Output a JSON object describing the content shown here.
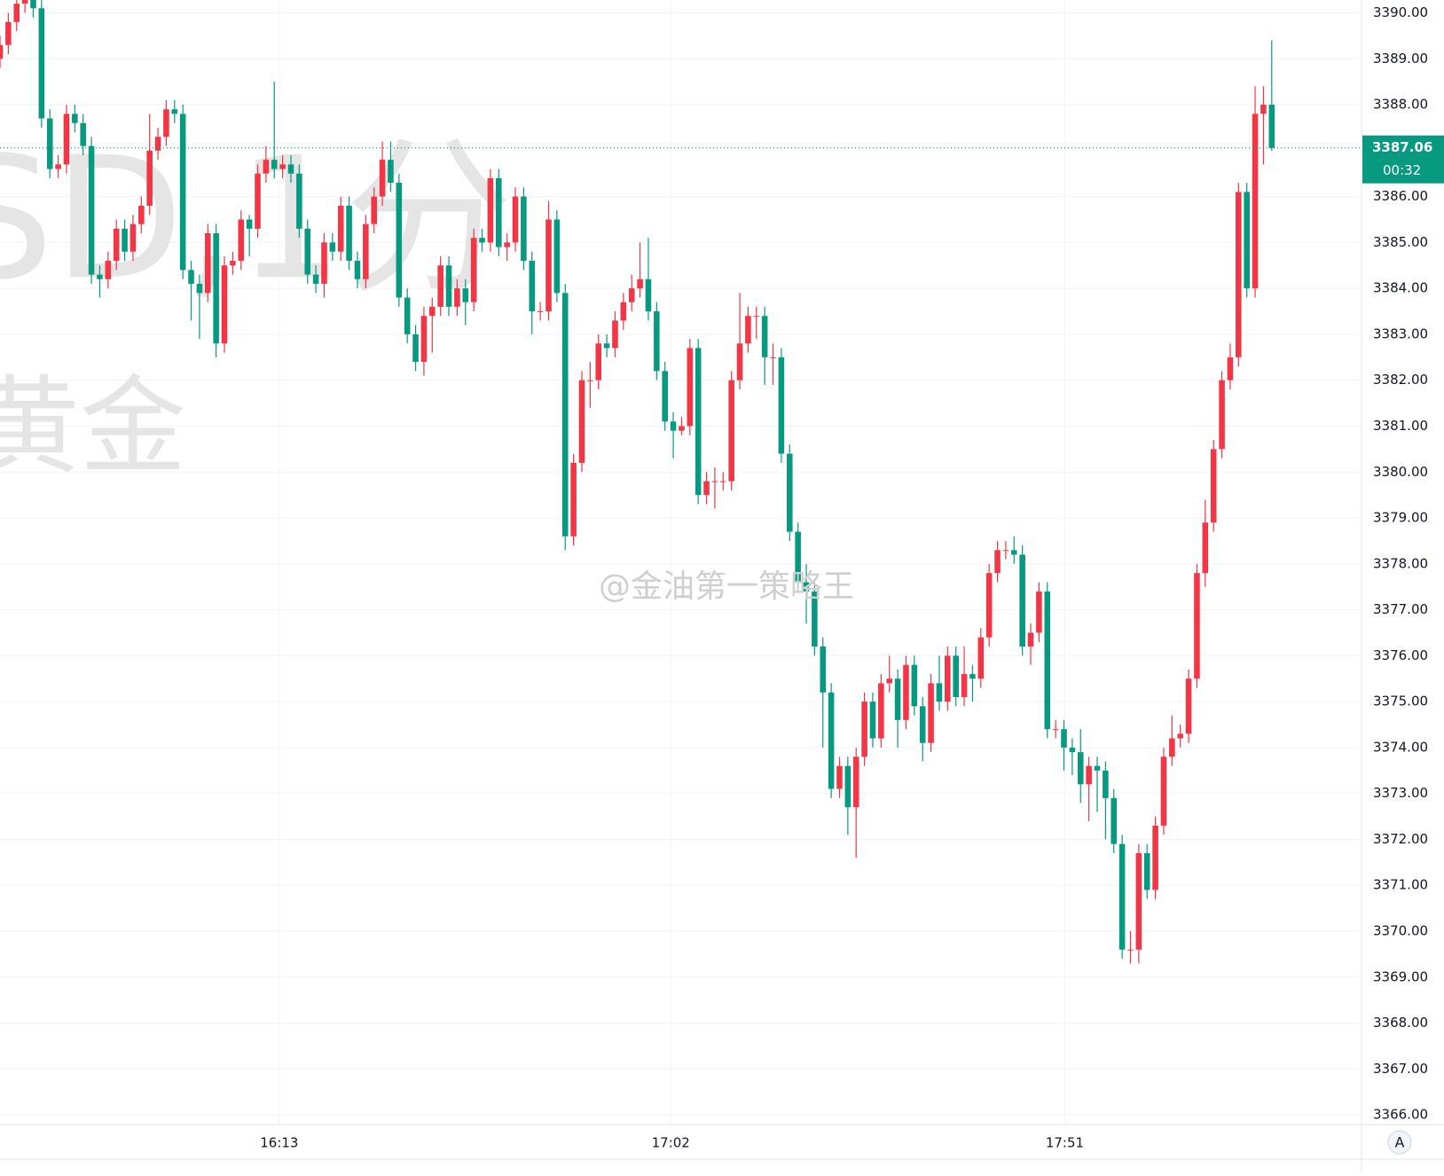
{
  "chart_data": {
    "type": "candlestick",
    "symbol_watermark": "SD,1分",
    "name_watermark": "黄金",
    "credit_watermark": "@金油第一策略王",
    "up_color": "#f23645",
    "down_color": "#089981",
    "grid": true,
    "last_price": 3387.06,
    "countdown": "00:32",
    "scale_button": "A",
    "xlim": [
      0,
      163.8
    ],
    "xticks": [
      {
        "value": 33.6,
        "label": "16:13"
      },
      {
        "value": 80.7,
        "label": "17:02"
      },
      {
        "value": 128.1,
        "label": "17:51"
      }
    ],
    "ylim": [
      3365.79,
      3390.28
    ],
    "yticks": [
      {
        "value": 3366,
        "label": "3366.00"
      },
      {
        "value": 3367,
        "label": "3367.00"
      },
      {
        "value": 3368,
        "label": "3368.00"
      },
      {
        "value": 3369,
        "label": "3369.00"
      },
      {
        "value": 3370,
        "label": "3370.00"
      },
      {
        "value": 3371,
        "label": "3371.00"
      },
      {
        "value": 3372,
        "label": "3372.00"
      },
      {
        "value": 3373,
        "label": "3373.00"
      },
      {
        "value": 3374,
        "label": "3374.00"
      },
      {
        "value": 3375,
        "label": "3375.00"
      },
      {
        "value": 3376,
        "label": "3376.00"
      },
      {
        "value": 3377,
        "label": "3377.00"
      },
      {
        "value": 3378,
        "label": "3378.00"
      },
      {
        "value": 3379,
        "label": "3379.00"
      },
      {
        "value": 3380,
        "label": "3380.00"
      },
      {
        "value": 3381,
        "label": "3381.00"
      },
      {
        "value": 3382,
        "label": "3382.00"
      },
      {
        "value": 3383,
        "label": "3383.00"
      },
      {
        "value": 3384,
        "label": "3384.00"
      },
      {
        "value": 3385,
        "label": "3385.00"
      },
      {
        "value": 3386,
        "label": "3386.00"
      },
      {
        "value": 3388,
        "label": "3388.00"
      },
      {
        "value": 3389,
        "label": "3389.00"
      },
      {
        "value": 3390,
        "label": "3390.00"
      }
    ],
    "open": [
      3389.0,
      3389.3,
      3389.8,
      3390.2,
      3390.3,
      3390.1,
      3387.7,
      3386.6,
      3386.7,
      3387.8,
      3387.6,
      3387.1,
      3384.3,
      3384.2,
      3384.6,
      3385.3,
      3384.8,
      3385.4,
      3385.8,
      3387.0,
      3387.3,
      3387.9,
      3387.8,
      3384.4,
      3384.1,
      3383.9,
      3385.2,
      3382.8,
      3384.5,
      3384.6,
      3385.5,
      3385.3,
      3386.5,
      3386.8,
      3386.6,
      3386.7,
      3386.5,
      3385.3,
      3384.3,
      3384.1,
      3385.0,
      3384.8,
      3385.8,
      3384.6,
      3384.2,
      3385.4,
      3386.0,
      3386.8,
      3386.3,
      3383.8,
      3383.0,
      3382.4,
      3383.4,
      3383.6,
      3384.5,
      3383.6,
      3384.0,
      3383.7,
      3385.1,
      3385.0,
      3386.4,
      3384.9,
      3385.0,
      3386.0,
      3384.6,
      3383.5,
      3383.5,
      3385.5,
      3383.9,
      3378.6,
      3380.2,
      3382.0,
      3382.0,
      3382.8,
      3382.7,
      3383.3,
      3383.7,
      3384.0,
      3384.2,
      3383.5,
      3382.2,
      3381.1,
      3380.9,
      3381.0,
      3382.7,
      3379.5,
      3379.8,
      3379.8,
      3379.8,
      3382.0,
      3382.8,
      3383.4,
      3383.4,
      3382.5,
      3382.5,
      3380.4,
      3378.7,
      3377.6,
      3377.4,
      3376.2,
      3375.2,
      3373.1,
      3373.6,
      3372.7,
      3373.8,
      3375.0,
      3374.2,
      3375.4,
      3375.5,
      3374.6,
      3375.8,
      3374.9,
      3374.1,
      3375.4,
      3375.0,
      3376.0,
      3375.1,
      3375.6,
      3375.5,
      3376.4,
      3377.8,
      3378.3,
      3378.3,
      3378.2,
      3376.2,
      3376.5,
      3377.4,
      3374.4,
      3374.4,
      3374.0,
      3373.9,
      3373.2,
      3373.6,
      3373.5,
      3372.9,
      3371.9,
      3369.6,
      3369.6,
      3371.7,
      3370.9,
      3372.3,
      3373.8,
      3374.2,
      3374.3,
      3375.5,
      3377.8,
      3378.9,
      3380.5,
      3382.0,
      3382.5,
      3386.1,
      3384.0,
      3387.8,
      3388.0
    ],
    "high": [
      3389.5,
      3390.0,
      3390.4,
      3390.5,
      3390.5,
      3390.3,
      3387.9,
      3386.9,
      3388.0,
      3388.0,
      3387.8,
      3387.3,
      3384.5,
      3384.8,
      3385.5,
      3385.5,
      3385.6,
      3386.0,
      3387.8,
      3387.5,
      3388.1,
      3388.1,
      3388.0,
      3384.6,
      3384.3,
      3385.4,
      3385.4,
      3384.7,
      3384.8,
      3385.7,
      3385.6,
      3386.7,
      3387.1,
      3388.5,
      3386.9,
      3386.9,
      3386.7,
      3385.5,
      3384.5,
      3385.2,
      3385.2,
      3386.0,
      3386.0,
      3384.8,
      3385.6,
      3386.2,
      3387.2,
      3387.2,
      3386.5,
      3384.0,
      3383.2,
      3383.6,
      3383.8,
      3384.7,
      3384.7,
      3384.2,
      3384.2,
      3385.3,
      3385.3,
      3386.6,
      3386.6,
      3385.2,
      3386.2,
      3386.2,
      3384.8,
      3383.7,
      3385.9,
      3385.7,
      3384.1,
      3380.4,
      3382.2,
      3382.4,
      3383.0,
      3383.0,
      3383.5,
      3383.9,
      3384.3,
      3385.0,
      3385.1,
      3383.7,
      3382.4,
      3381.3,
      3381.2,
      3382.9,
      3382.9,
      3380.0,
      3380.1,
      3380.0,
      3382.2,
      3383.9,
      3383.6,
      3383.6,
      3383.6,
      3382.8,
      3382.7,
      3380.6,
      3378.9,
      3378.0,
      3377.6,
      3376.4,
      3375.4,
      3373.8,
      3373.8,
      3374.0,
      3375.2,
      3375.2,
      3375.6,
      3376.0,
      3375.7,
      3376.0,
      3376.0,
      3375.1,
      3375.6,
      3376.0,
      3376.2,
      3376.2,
      3376.2,
      3375.8,
      3376.6,
      3378.0,
      3378.5,
      3378.5,
      3378.6,
      3378.4,
      3376.7,
      3377.6,
      3377.6,
      3374.6,
      3374.6,
      3374.2,
      3374.4,
      3373.8,
      3373.8,
      3373.7,
      3373.1,
      3372.1,
      3370.0,
      3371.9,
      3371.9,
      3372.5,
      3374.0,
      3374.7,
      3374.5,
      3375.7,
      3378.0,
      3379.4,
      3380.7,
      3382.2,
      3382.8,
      3386.3,
      3386.3,
      3388.4,
      3388.4,
      3389.4
    ],
    "low": [
      3388.8,
      3389.1,
      3389.6,
      3390.0,
      3389.9,
      3387.5,
      3386.4,
      3386.4,
      3386.5,
      3387.4,
      3386.9,
      3384.1,
      3383.8,
      3384.0,
      3384.4,
      3384.6,
      3384.6,
      3385.2,
      3385.6,
      3386.8,
      3387.1,
      3387.6,
      3384.2,
      3383.3,
      3382.9,
      3383.7,
      3382.5,
      3382.6,
      3384.3,
      3384.4,
      3384.7,
      3385.1,
      3386.3,
      3386.4,
      3386.4,
      3386.3,
      3385.1,
      3384.1,
      3383.9,
      3383.8,
      3384.6,
      3384.6,
      3384.4,
      3384.0,
      3384.0,
      3385.2,
      3385.8,
      3386.1,
      3383.6,
      3382.8,
      3382.2,
      3382.1,
      3382.6,
      3383.4,
      3383.4,
      3383.4,
      3383.2,
      3383.5,
      3384.8,
      3384.8,
      3384.7,
      3384.6,
      3384.8,
      3384.4,
      3383.0,
      3383.3,
      3383.3,
      3383.7,
      3378.3,
      3378.4,
      3380.0,
      3381.4,
      3381.8,
      3382.5,
      3382.5,
      3383.1,
      3383.5,
      3383.8,
      3383.3,
      3382.0,
      3380.9,
      3380.3,
      3380.8,
      3380.8,
      3379.3,
      3379.3,
      3379.2,
      3379.6,
      3379.6,
      3381.8,
      3382.6,
      3382.9,
      3381.9,
      3381.9,
      3380.2,
      3378.5,
      3377.4,
      3376.7,
      3376.0,
      3374.0,
      3372.9,
      3372.9,
      3372.1,
      3371.6,
      3373.6,
      3374.0,
      3374.0,
      3375.2,
      3374.0,
      3374.4,
      3374.7,
      3373.7,
      3373.9,
      3374.8,
      3374.8,
      3374.9,
      3374.9,
      3375.0,
      3375.3,
      3376.2,
      3377.6,
      3378.1,
      3378.0,
      3376.0,
      3375.8,
      3376.3,
      3374.2,
      3374.2,
      3373.5,
      3373.4,
      3372.8,
      3372.4,
      3372.6,
      3372.0,
      3371.7,
      3369.4,
      3369.3,
      3369.3,
      3370.7,
      3370.7,
      3372.1,
      3373.6,
      3374.0,
      3374.1,
      3375.3,
      3377.5,
      3378.7,
      3380.3,
      3381.8,
      3382.3,
      3383.8,
      3383.8,
      3386.7,
      3387.0
    ],
    "close": [
      3389.3,
      3389.8,
      3390.2,
      3390.3,
      3390.1,
      3387.7,
      3386.6,
      3386.7,
      3387.8,
      3387.6,
      3387.1,
      3384.3,
      3384.2,
      3384.6,
      3385.3,
      3384.8,
      3385.4,
      3385.8,
      3387.0,
      3387.3,
      3387.9,
      3387.8,
      3384.4,
      3384.1,
      3383.9,
      3385.2,
      3382.8,
      3384.5,
      3384.6,
      3385.5,
      3385.3,
      3386.5,
      3386.8,
      3386.6,
      3386.7,
      3386.5,
      3385.3,
      3384.3,
      3384.1,
      3385.0,
      3384.8,
      3385.8,
      3384.6,
      3384.2,
      3385.4,
      3386.0,
      3386.8,
      3386.3,
      3383.8,
      3383.0,
      3382.4,
      3383.4,
      3383.6,
      3384.5,
      3383.6,
      3384.0,
      3383.7,
      3385.1,
      3385.0,
      3386.4,
      3384.9,
      3385.0,
      3386.0,
      3384.6,
      3383.5,
      3383.5,
      3385.5,
      3383.9,
      3378.6,
      3380.2,
      3382.0,
      3382.0,
      3382.8,
      3382.7,
      3383.3,
      3383.7,
      3384.0,
      3384.2,
      3383.5,
      3382.2,
      3381.1,
      3380.9,
      3381.0,
      3382.7,
      3379.5,
      3379.8,
      3379.8,
      3379.8,
      3382.0,
      3382.8,
      3383.4,
      3383.4,
      3382.5,
      3382.5,
      3380.4,
      3378.7,
      3377.6,
      3377.4,
      3376.2,
      3375.2,
      3373.1,
      3373.6,
      3372.7,
      3373.8,
      3375.0,
      3374.2,
      3375.4,
      3375.5,
      3374.6,
      3375.8,
      3374.9,
      3374.1,
      3375.4,
      3375.0,
      3376.0,
      3375.1,
      3375.6,
      3375.5,
      3376.4,
      3377.8,
      3378.3,
      3378.3,
      3378.2,
      3376.2,
      3376.5,
      3377.4,
      3374.4,
      3374.4,
      3374.0,
      3373.9,
      3373.2,
      3373.6,
      3373.5,
      3372.9,
      3371.9,
      3369.6,
      3369.6,
      3371.7,
      3370.9,
      3372.3,
      3373.8,
      3374.2,
      3374.3,
      3375.5,
      3377.8,
      3378.9,
      3380.5,
      3382.0,
      3382.5,
      3386.1,
      3384.0,
      3387.8,
      3388.0,
      3387.06
    ]
  }
}
